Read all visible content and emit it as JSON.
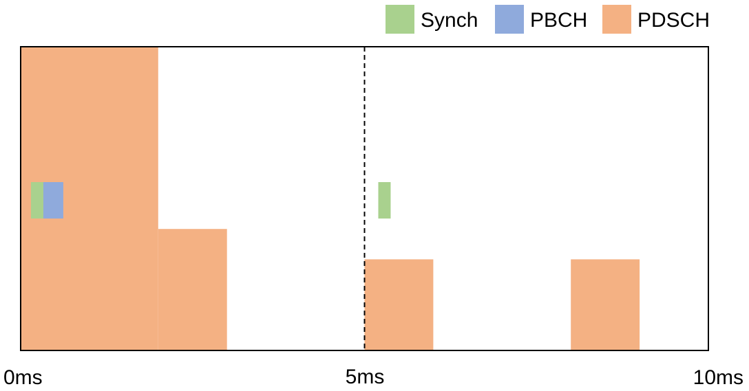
{
  "legend": [
    {
      "key": "synch",
      "label": "Synch",
      "color": "#a9d18e"
    },
    {
      "key": "pbch",
      "label": "PBCH",
      "color": "#8faadc"
    },
    {
      "key": "pdsch",
      "label": "PDSCH",
      "color": "#f4b183"
    }
  ],
  "time_axis": {
    "start_ms": 0,
    "end_ms": 10,
    "tick_labels": [
      "0ms",
      "5ms",
      "10ms"
    ],
    "divider_ms": 5,
    "divider_style": "dashed"
  },
  "blocks": [
    {
      "channel": "pdsch",
      "start_ms": 0,
      "end_ms": 2,
      "level": 1.0
    },
    {
      "channel": "pdsch",
      "start_ms": 2,
      "end_ms": 3,
      "level": 0.4
    },
    {
      "channel": "pdsch",
      "start_ms": 5,
      "end_ms": 6,
      "level": 0.3
    },
    {
      "channel": "pdsch",
      "start_ms": 8,
      "end_ms": 9,
      "level": 0.3
    }
  ],
  "signals": [
    {
      "channel": "synch",
      "start_ms": 0.15,
      "end_ms": 0.33
    },
    {
      "channel": "pbch",
      "start_ms": 0.33,
      "end_ms": 0.62
    },
    {
      "channel": "synch",
      "start_ms": 5.2,
      "end_ms": 5.38
    }
  ]
}
